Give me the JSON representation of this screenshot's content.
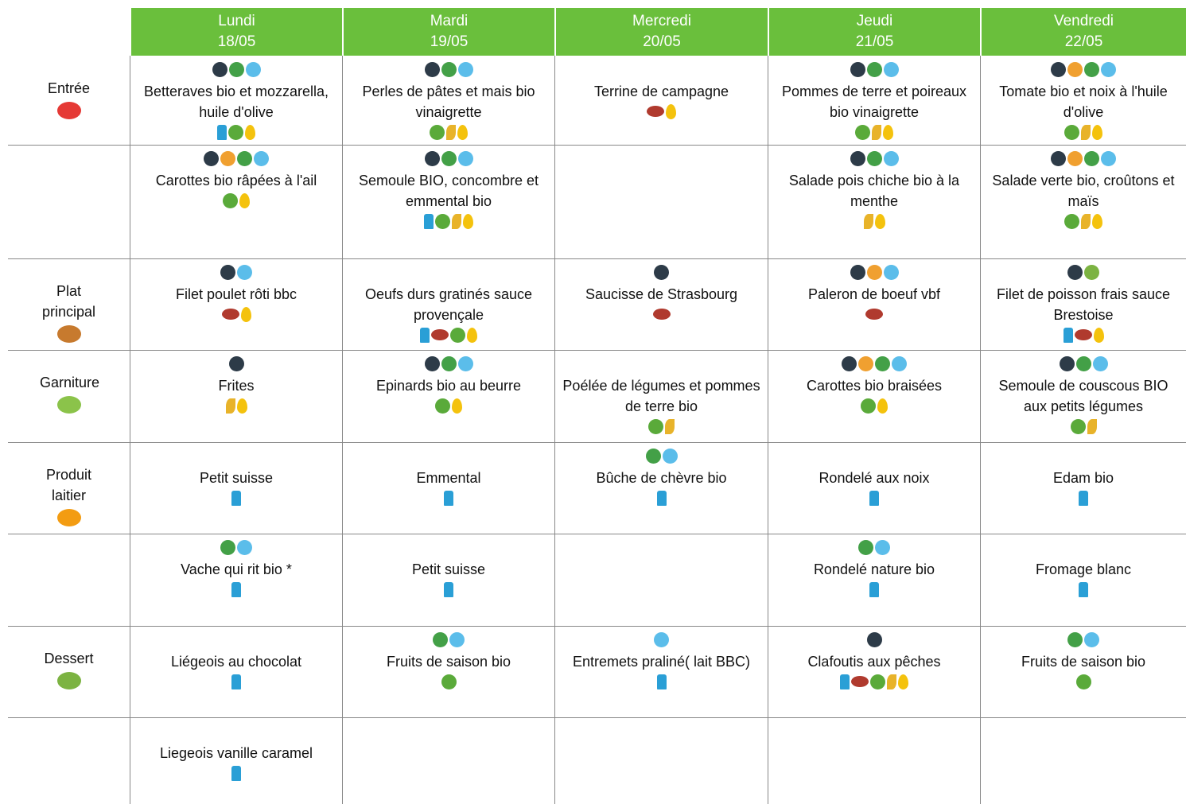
{
  "header": {
    "days": [
      {
        "day": "Lundi",
        "date": "18/05"
      },
      {
        "day": "Mardi",
        "date": "19/05"
      },
      {
        "day": "Mercredi",
        "date": "20/05"
      },
      {
        "day": "Jeudi",
        "date": "21/05"
      },
      {
        "day": "Vendredi",
        "date": "22/05"
      }
    ]
  },
  "rows": [
    {
      "category": "Entrée",
      "cells": [
        "Betteraves bio et mozzarella, huile d'olive",
        "Perles de pâtes et mais bio vinaigrette",
        "Terrine de campagne",
        "Pommes de terre et poireaux bio vinaigrette",
        "Tomate bio et noix à l'huile d'olive"
      ]
    },
    {
      "cells": [
        "Carottes bio râpées à l'ail",
        "Semoule BIO, concombre et emmental bio",
        null,
        "Salade pois chiche bio à la menthe",
        "Salade verte bio, croûtons et maïs"
      ]
    },
    {
      "category": "Plat principal",
      "cells": [
        "Filet poulet rôti bbc",
        "Oeufs durs gratinés sauce provençale",
        "Saucisse de Strasbourg",
        "Paleron de boeuf vbf",
        "Filet de poisson frais sauce Brestoise"
      ]
    },
    {
      "category": "Garniture",
      "cells": [
        "Frites",
        "Epinards bio au beurre",
        "Poélée de légumes et pommes de terre bio",
        "Carottes bio braisées",
        "Semoule de couscous BIO aux petits légumes"
      ]
    },
    {
      "category": "Produit laitier",
      "cells": [
        "Petit suisse",
        "Emmental",
        "Bûche de chèvre bio",
        "Rondelé aux noix",
        "Edam bio"
      ]
    },
    {
      "cells": [
        "Vache qui rit bio *",
        "Petit suisse",
        null,
        "Rondelé nature bio",
        "Fromage blanc"
      ]
    },
    {
      "category": "Dessert",
      "cells": [
        "Liégeois au chocolat",
        "Fruits de saison bio",
        "Entremets praliné( lait BBC)",
        "Clafoutis aux pêches",
        "Fruits de saison bio"
      ]
    },
    {
      "cells": [
        "Liegeois vanille caramel",
        null,
        null,
        null,
        null
      ]
    }
  ]
}
